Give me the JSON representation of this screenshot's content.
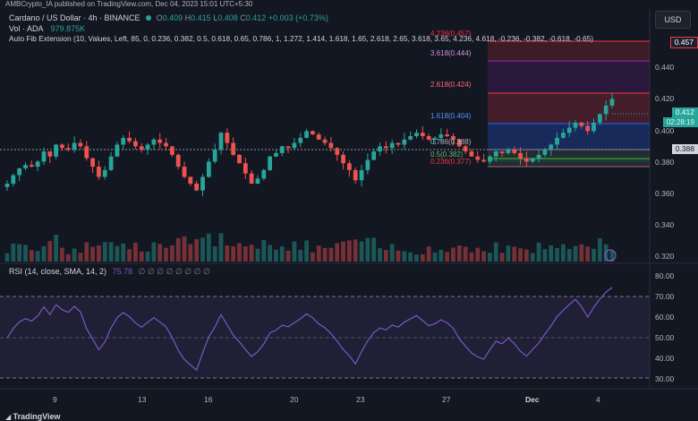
{
  "header": {
    "publish_line": "AMBCrypto_IA published on TradingView.com, Dec 04, 2023 15:01 UTC+5:30",
    "currency_button": "USD"
  },
  "legend": {
    "symbol": "Cardano / US Dollar · 4h · BINANCE",
    "o_label": "O",
    "o": "0.409",
    "h_label": "H",
    "h": "0.415",
    "l_label": "L",
    "l": "0.408",
    "c_label": "C",
    "c": "0.412",
    "change": "+0.003 (+0.73%)",
    "volume_label": "Vol · ADA",
    "volume_value": "979.875K",
    "fib_indicator": "Auto Fib Extension (10, Values, Left, 85, 0, 0.236, 0.382, 0.5, 0.618, 0.65, 0.786, 1, 1.272, 1.414, 1.618, 1.65, 2.618, 2.65, 3.618, 3.65, 4.236, 4.618, -0.236, -0.382, -0.618, -0.65)"
  },
  "fib_levels": [
    {
      "label": "4.236(0.457)",
      "color": "#f23645"
    },
    {
      "label": "3.618(0.444)",
      "color": "#9c27b0"
    },
    {
      "label": "2.618(0.424)",
      "color": "#f23645"
    },
    {
      "label": "1.618(0.404)",
      "color": "#2962ff"
    },
    {
      "label": "0.786(0.388)",
      "color": "#a5a5a5"
    },
    {
      "label": "0.5(0.382)",
      "color": "#4caf50"
    },
    {
      "label": "0.236(0.377)",
      "color": "#f23645"
    }
  ],
  "price_axis": {
    "ticks": [
      "0.440",
      "0.420",
      "0.400",
      "0.380",
      "0.360",
      "0.340",
      "0.320"
    ],
    "tag_457": "0.457",
    "tag_current": "0.412",
    "tag_countdown": "02:28:19",
    "tag_388": "0.388"
  },
  "rsi": {
    "legend": "RSI (14, close, SMA, 14, 2)",
    "value": "75.78",
    "empty_values": "∅ ∅ ∅ ∅ ∅ ∅ ∅ ∅",
    "ticks": [
      "80.00",
      "70.00",
      "60.00",
      "50.00",
      "40.00",
      "30.00"
    ]
  },
  "time_axis": {
    "labels": [
      "9",
      "13",
      "16",
      "20",
      "23",
      "27",
      "Dec",
      "4"
    ]
  },
  "footer": {
    "brand": "TradingView"
  },
  "colors": {
    "up": "#26a69a",
    "down": "#ef5350",
    "rsi_line": "#7e57c2",
    "background": "#131722"
  },
  "chart_data": {
    "type": "candlestick",
    "timeframe": "4h",
    "price_range": [
      0.315,
      0.465
    ],
    "rsi_range": [
      25,
      82
    ],
    "candles_close_approx": [
      0.362,
      0.367,
      0.371,
      0.373,
      0.372,
      0.375,
      0.381,
      0.378,
      0.385,
      0.383,
      0.382,
      0.386,
      0.384,
      0.377,
      0.372,
      0.366,
      0.37,
      0.378,
      0.385,
      0.389,
      0.387,
      0.384,
      0.382,
      0.385,
      0.388,
      0.386,
      0.384,
      0.379,
      0.372,
      0.366,
      0.362,
      0.358,
      0.366,
      0.375,
      0.382,
      0.392,
      0.386,
      0.379,
      0.374,
      0.368,
      0.362,
      0.365,
      0.37,
      0.378,
      0.38,
      0.384,
      0.383,
      0.386,
      0.389,
      0.393,
      0.391,
      0.388,
      0.386,
      0.383,
      0.379,
      0.374,
      0.37,
      0.364,
      0.37,
      0.376,
      0.381,
      0.384,
      0.383,
      0.386,
      0.385,
      0.388,
      0.39,
      0.392,
      0.39,
      0.388,
      0.389,
      0.391,
      0.39,
      0.388,
      0.384,
      0.381,
      0.378,
      0.376,
      0.375,
      0.378,
      0.381,
      0.38,
      0.382,
      0.38,
      0.377,
      0.375,
      0.377,
      0.379,
      0.382,
      0.385,
      0.389,
      0.392,
      0.395,
      0.398,
      0.396,
      0.393,
      0.398,
      0.403,
      0.408,
      0.412
    ]
  }
}
